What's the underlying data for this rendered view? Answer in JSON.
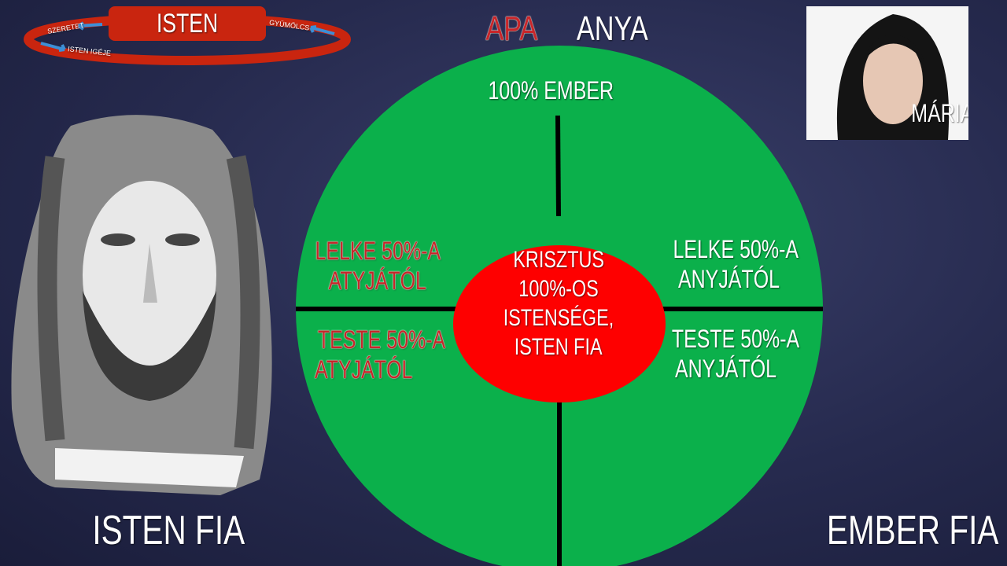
{
  "god_cycle": {
    "title": "ISTEN",
    "labels": [
      "SZERETET",
      "GYÜMÖLCS",
      "ISTEN IGÉJE"
    ]
  },
  "header": {
    "father": "APA",
    "mother": "ANYA"
  },
  "diagram": {
    "top_label": "100% EMBER",
    "center": [
      "KRISZTUS",
      "100%-OS",
      "ISTENSÉGE,",
      "ISTEN FIA"
    ],
    "left_top": [
      "LELKE 50%-A",
      "ATYJÁTÓL"
    ],
    "left_bottom": [
      "TESTE 50%-A",
      "ATYJÁTÓL"
    ],
    "right_top": [
      "LELKE 50%-A",
      "ANYJÁTÓL"
    ],
    "right_bottom": [
      "TESTE 50%-A",
      "ANYJÁTÓL"
    ],
    "colors": {
      "outer": "#0bb04b",
      "center": "#fe0000",
      "lines": "#000000",
      "red_text": "#c8262a"
    }
  },
  "mary": {
    "caption": "MÁRIA"
  },
  "footer": {
    "left": "ISTEN FIA",
    "right": "EMBER FIA"
  }
}
